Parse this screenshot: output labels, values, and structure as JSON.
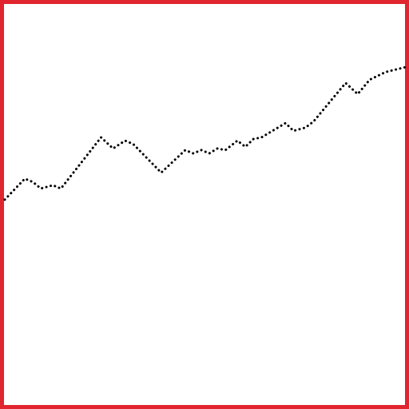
{
  "colors": {
    "frame": "#e0252e",
    "background": "#ffffff",
    "line": "#000000"
  },
  "chart_data": {
    "type": "line",
    "title": "",
    "xlabel": "",
    "ylabel": "",
    "line_style": "dotted",
    "grid": false,
    "legend": "none",
    "xlim": [
      0,
      100
    ],
    "ylim": [
      0,
      100
    ],
    "series": [
      {
        "x": [
          0,
          5,
          7,
          9,
          12,
          14,
          24,
          27,
          30,
          32,
          39,
          45,
          47,
          49,
          51,
          53,
          55,
          58,
          60,
          62,
          64,
          70,
          72,
          75,
          77,
          82,
          85,
          88,
          91,
          95,
          100
        ],
        "y": [
          51.2,
          56.3,
          55.5,
          53.9,
          54.7,
          53.9,
          66.4,
          63.7,
          65.6,
          64.8,
          57.8,
          63.3,
          62.5,
          63.3,
          62.5,
          63.7,
          63.3,
          65.6,
          64.1,
          66.0,
          66.4,
          69.9,
          68.0,
          68.8,
          70.3,
          76.2,
          79.7,
          77.0,
          80.5,
          82.4,
          83.6
        ]
      }
    ]
  }
}
